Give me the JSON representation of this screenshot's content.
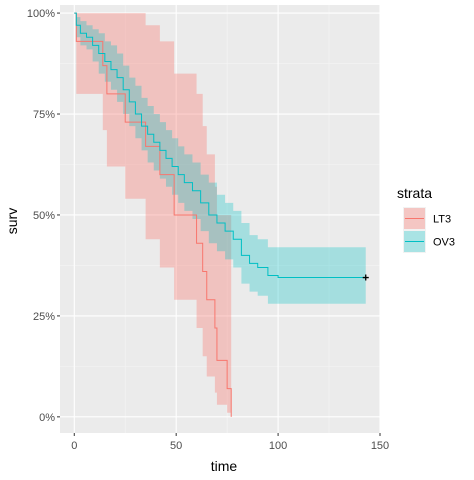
{
  "chart_data": {
    "type": "line",
    "subtype": "kaplan-meier",
    "xlabel": "time",
    "ylabel": "surv",
    "xlim": [
      -7,
      150
    ],
    "ylim": [
      -0.04,
      1.02
    ],
    "x_ticks": [
      0,
      50,
      100,
      150
    ],
    "x_tick_labels": [
      "0",
      "50",
      "100",
      "150"
    ],
    "y_ticks": [
      0,
      0.25,
      0.5,
      0.75,
      1.0
    ],
    "y_tick_labels": [
      "0%",
      "25%",
      "50%",
      "75%",
      "100%"
    ],
    "grid": true,
    "legend": {
      "title": "strata",
      "position": "right"
    },
    "series": [
      {
        "name": "LT3",
        "color": "#F8766D",
        "fill": "rgba(248,118,109,0.35)",
        "steps": [
          [
            0,
            1.0
          ],
          [
            1,
            0.93
          ],
          [
            14,
            0.87
          ],
          [
            16,
            0.8
          ],
          [
            25,
            0.73
          ],
          [
            35,
            0.67
          ],
          [
            42,
            0.6
          ],
          [
            49,
            0.5
          ],
          [
            55,
            0.5
          ],
          [
            60,
            0.43
          ],
          [
            63,
            0.36
          ],
          [
            65,
            0.29
          ],
          [
            69,
            0.22
          ],
          [
            70,
            0.14
          ],
          [
            75,
            0.07
          ],
          [
            77,
            0.0
          ]
        ],
        "upper": [
          [
            0,
            1.0
          ],
          [
            1,
            1.0
          ],
          [
            14,
            1.0
          ],
          [
            16,
            1.0
          ],
          [
            25,
            1.0
          ],
          [
            35,
            0.97
          ],
          [
            42,
            0.93
          ],
          [
            49,
            0.85
          ],
          [
            55,
            0.85
          ],
          [
            60,
            0.8
          ],
          [
            63,
            0.72
          ],
          [
            65,
            0.65
          ],
          [
            69,
            0.57
          ],
          [
            70,
            0.5
          ],
          [
            75,
            0.5
          ],
          [
            77,
            0.5
          ]
        ],
        "lower": [
          [
            0,
            1.0
          ],
          [
            1,
            0.8
          ],
          [
            14,
            0.71
          ],
          [
            16,
            0.62
          ],
          [
            25,
            0.54
          ],
          [
            35,
            0.44
          ],
          [
            42,
            0.37
          ],
          [
            49,
            0.29
          ],
          [
            55,
            0.29
          ],
          [
            60,
            0.22
          ],
          [
            63,
            0.15
          ],
          [
            65,
            0.1
          ],
          [
            69,
            0.06
          ],
          [
            70,
            0.03
          ],
          [
            75,
            0.01
          ],
          [
            77,
            0.0
          ]
        ]
      },
      {
        "name": "OV3",
        "color": "#00BFC4",
        "fill": "rgba(0,191,196,0.30)",
        "steps": [
          [
            0,
            1.0
          ],
          [
            1,
            0.97
          ],
          [
            3,
            0.95
          ],
          [
            6,
            0.94
          ],
          [
            9,
            0.92
          ],
          [
            12,
            0.9
          ],
          [
            15,
            0.88
          ],
          [
            18,
            0.86
          ],
          [
            21,
            0.84
          ],
          [
            24,
            0.81
          ],
          [
            27,
            0.78
          ],
          [
            30,
            0.75
          ],
          [
            33,
            0.72
          ],
          [
            36,
            0.7
          ],
          [
            39,
            0.68
          ],
          [
            42,
            0.66
          ],
          [
            45,
            0.64
          ],
          [
            48,
            0.62
          ],
          [
            51,
            0.6
          ],
          [
            54,
            0.58
          ],
          [
            58,
            0.56
          ],
          [
            62,
            0.53
          ],
          [
            66,
            0.5
          ],
          [
            70,
            0.48
          ],
          [
            74,
            0.46
          ],
          [
            78,
            0.44
          ],
          [
            82,
            0.4
          ],
          [
            86,
            0.38
          ],
          [
            90,
            0.37
          ],
          [
            95,
            0.35
          ],
          [
            100,
            0.345
          ],
          [
            143,
            0.345
          ]
        ],
        "upper": [
          [
            0,
            1.0
          ],
          [
            1,
            0.99
          ],
          [
            3,
            0.98
          ],
          [
            6,
            0.97
          ],
          [
            9,
            0.96
          ],
          [
            12,
            0.95
          ],
          [
            15,
            0.93
          ],
          [
            18,
            0.92
          ],
          [
            21,
            0.9
          ],
          [
            24,
            0.87
          ],
          [
            27,
            0.84
          ],
          [
            30,
            0.82
          ],
          [
            33,
            0.79
          ],
          [
            36,
            0.77
          ],
          [
            39,
            0.75
          ],
          [
            42,
            0.73
          ],
          [
            45,
            0.71
          ],
          [
            48,
            0.69
          ],
          [
            51,
            0.67
          ],
          [
            54,
            0.65
          ],
          [
            58,
            0.63
          ],
          [
            62,
            0.6
          ],
          [
            66,
            0.58
          ],
          [
            70,
            0.55
          ],
          [
            74,
            0.53
          ],
          [
            78,
            0.51
          ],
          [
            82,
            0.48
          ],
          [
            86,
            0.45
          ],
          [
            90,
            0.44
          ],
          [
            95,
            0.42
          ],
          [
            100,
            0.42
          ],
          [
            143,
            0.42
          ]
        ],
        "lower": [
          [
            0,
            1.0
          ],
          [
            1,
            0.94
          ],
          [
            3,
            0.92
          ],
          [
            6,
            0.91
          ],
          [
            9,
            0.88
          ],
          [
            12,
            0.85
          ],
          [
            15,
            0.83
          ],
          [
            18,
            0.81
          ],
          [
            21,
            0.78
          ],
          [
            24,
            0.75
          ],
          [
            27,
            0.72
          ],
          [
            30,
            0.69
          ],
          [
            33,
            0.66
          ],
          [
            36,
            0.63
          ],
          [
            39,
            0.61
          ],
          [
            42,
            0.59
          ],
          [
            45,
            0.57
          ],
          [
            48,
            0.55
          ],
          [
            51,
            0.53
          ],
          [
            54,
            0.51
          ],
          [
            58,
            0.49
          ],
          [
            62,
            0.46
          ],
          [
            66,
            0.43
          ],
          [
            70,
            0.41
          ],
          [
            74,
            0.39
          ],
          [
            78,
            0.37
          ],
          [
            82,
            0.33
          ],
          [
            86,
            0.31
          ],
          [
            90,
            0.3
          ],
          [
            95,
            0.28
          ],
          [
            100,
            0.28
          ],
          [
            143,
            0.28
          ]
        ],
        "censor_marks": [
          [
            143,
            0.345
          ]
        ]
      }
    ]
  }
}
